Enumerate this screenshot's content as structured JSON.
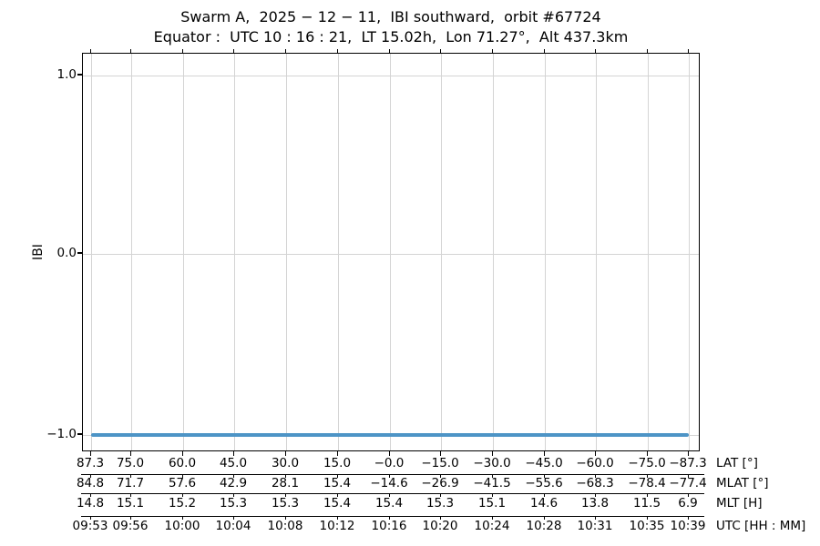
{
  "chart": {
    "title_line1": "Swarm A,  2025 − 12 − 11,  IBI southward,  orbit #67724",
    "title_line2": "Equator :  UTC 10 : 16 : 21,  LT 15.02h,  Lon 71.27°,  Alt 437.3km",
    "y_axis_label": "IBI"
  },
  "chart_data": {
    "type": "line",
    "title": "Swarm A, 2025-12-11, IBI southward, orbit #67724",
    "subtitle": "Equator: UTC 10:16:21, LT 15.02h, Lon 71.27°, Alt 437.3km",
    "ylabel": "IBI",
    "ylim": [
      -1.09,
      1.12
    ],
    "grid": true,
    "legend": "none",
    "y_ticks": [
      "1.0",
      "0.0",
      "−1.0"
    ],
    "line_color": "#4d94c6",
    "series": [
      {
        "name": "IBI",
        "x_utc": [
          "09:53",
          "09:56",
          "10:00",
          "10:04",
          "10:08",
          "10:12",
          "10:16",
          "10:20",
          "10:24",
          "10:28",
          "10:31",
          "10:35",
          "10:39"
        ],
        "values": [
          -1,
          -1,
          -1,
          -1,
          -1,
          -1,
          -1,
          -1,
          -1,
          -1,
          -1,
          -1,
          -1
        ]
      }
    ],
    "x_axis_rows": [
      {
        "label": "LAT [°]",
        "values": [
          "87.3",
          "75.0",
          "60.0",
          "45.0",
          "30.0",
          "15.0",
          "−0.0",
          "−15.0",
          "−30.0",
          "−45.0",
          "−60.0",
          "−75.0",
          "−87.3"
        ]
      },
      {
        "label": "MLAT [°]",
        "values": [
          "84.8",
          "71.7",
          "57.6",
          "42.9",
          "28.1",
          "15.4",
          "−14.6",
          "−26.9",
          "−41.5",
          "−55.6",
          "−68.3",
          "−78.4",
          "−77.4"
        ]
      },
      {
        "label": "MLT [H]",
        "values": [
          "14.8",
          "15.1",
          "15.2",
          "15.3",
          "15.3",
          "15.4",
          "15.4",
          "15.3",
          "15.1",
          "14.6",
          "13.8",
          "11.5",
          "6.9"
        ]
      },
      {
        "label": "UTC [HH : MM]",
        "values": [
          "09:53",
          "09:56",
          "10:00",
          "10:04",
          "10:08",
          "10:12",
          "10:16",
          "10:20",
          "10:24",
          "10:28",
          "10:31",
          "10:35",
          "10:39"
        ]
      }
    ]
  }
}
